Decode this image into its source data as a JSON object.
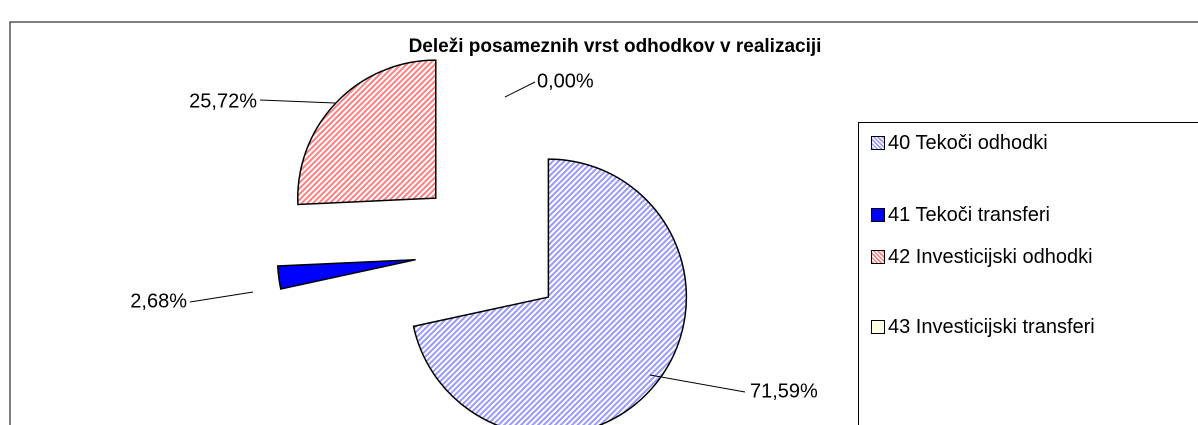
{
  "chart_data": {
    "type": "pie",
    "title": "Deleži posameznih vrst odhodkov v realizaciji",
    "categories": [
      "40 Tekoči odhodki",
      "41 Tekoči transferi",
      "42 Investicijski odhodki",
      "43 Investicijski transferi"
    ],
    "values": [
      71.59,
      2.68,
      25.72,
      0.0
    ],
    "value_labels": [
      "71,59%",
      "2,68%",
      "25,72%",
      "0,00%"
    ],
    "colors": [
      "#9999ff",
      "#0000ff",
      "#ff8080",
      "#ffffcc"
    ],
    "legend": "right"
  }
}
